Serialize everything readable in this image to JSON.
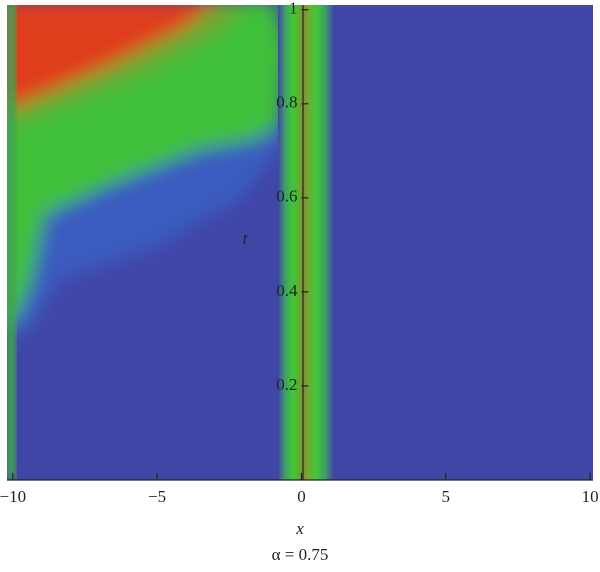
{
  "chart_data": {
    "type": "heatmap",
    "xlabel": "x",
    "ylabel": "t",
    "caption": "α = 0.75",
    "xlim": [
      -10.2,
      10.1
    ],
    "ylim": [
      0,
      1.01
    ],
    "xticks": [
      {
        "value": -10,
        "label": "−10"
      },
      {
        "value": -5,
        "label": "−5"
      },
      0,
      5,
      10
    ],
    "yticks": [
      0.2,
      0.4,
      0.6,
      0.8,
      1
    ]
  }
}
